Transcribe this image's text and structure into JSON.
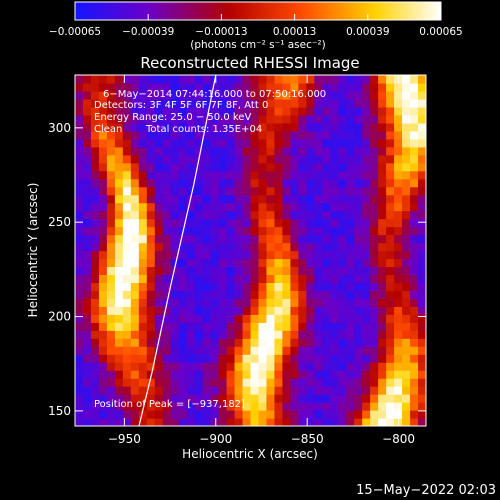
{
  "chart_data": {
    "type": "heatmap",
    "title": "Reconstructed RHESSI Image",
    "xlabel": "Heliocentric X (arcsec)",
    "ylabel": "Heliocentric Y (arcsec)",
    "xlim": [
      -977,
      -785
    ],
    "ylim": [
      142,
      328
    ],
    "x_ticks": [
      -950,
      -900,
      -850,
      -800
    ],
    "y_ticks": [
      150,
      200,
      250,
      300
    ],
    "x_tick_labels": [
      "−950",
      "−900",
      "−850",
      "−800"
    ],
    "y_tick_labels": [
      "150",
      "200",
      "250",
      "300"
    ],
    "colorbar": {
      "vmin": -0.00065,
      "vmax": 0.00065,
      "ticks": [
        -0.00065,
        -0.00039,
        -0.00013,
        0.00013,
        0.00039,
        0.00065
      ],
      "tick_labels": [
        "−0.00065",
        "−0.00039",
        "−0.00013",
        "0.00013",
        "0.00039",
        "0.00065"
      ],
      "units": "(photons cm⁻² s⁻¹ asec⁻²)",
      "colormap": [
        "#1515ff",
        "#6a00c8",
        "#b40000",
        "#ff4b00",
        "#ffd200",
        "#ffffff"
      ]
    },
    "stripes": [
      {
        "center_x": -950,
        "amplitude": 0.00065
      },
      {
        "center_x": -870,
        "amplitude": 0.00056
      },
      {
        "center_x": -800,
        "amplitude": 0.0006
      }
    ],
    "stripe_tilt_arcsec_per_arcsec": 0.1,
    "annotations": {
      "time_range": "6−May−2014 07:44:16.000 to 07:50:16.000",
      "detectors": "Detectors: 3F 4F 5F 6F 7F 8F, Att 0",
      "energy_range": "Energy Range: 25.0 − 50.0 keV",
      "method": "Clean",
      "total_counts": "Total counts: 1.35E+04",
      "peak_position": "Position of Peak = [−937,182]"
    },
    "peak": {
      "x": -937,
      "y": 182
    },
    "limb_curve": [
      [
        -942,
        142
      ],
      [
        -935,
        170
      ],
      [
        -925,
        215
      ],
      [
        -912,
        270
      ],
      [
        -900,
        328
      ]
    ]
  },
  "footer": {
    "timestamp": "15−May−2022 02:03"
  }
}
